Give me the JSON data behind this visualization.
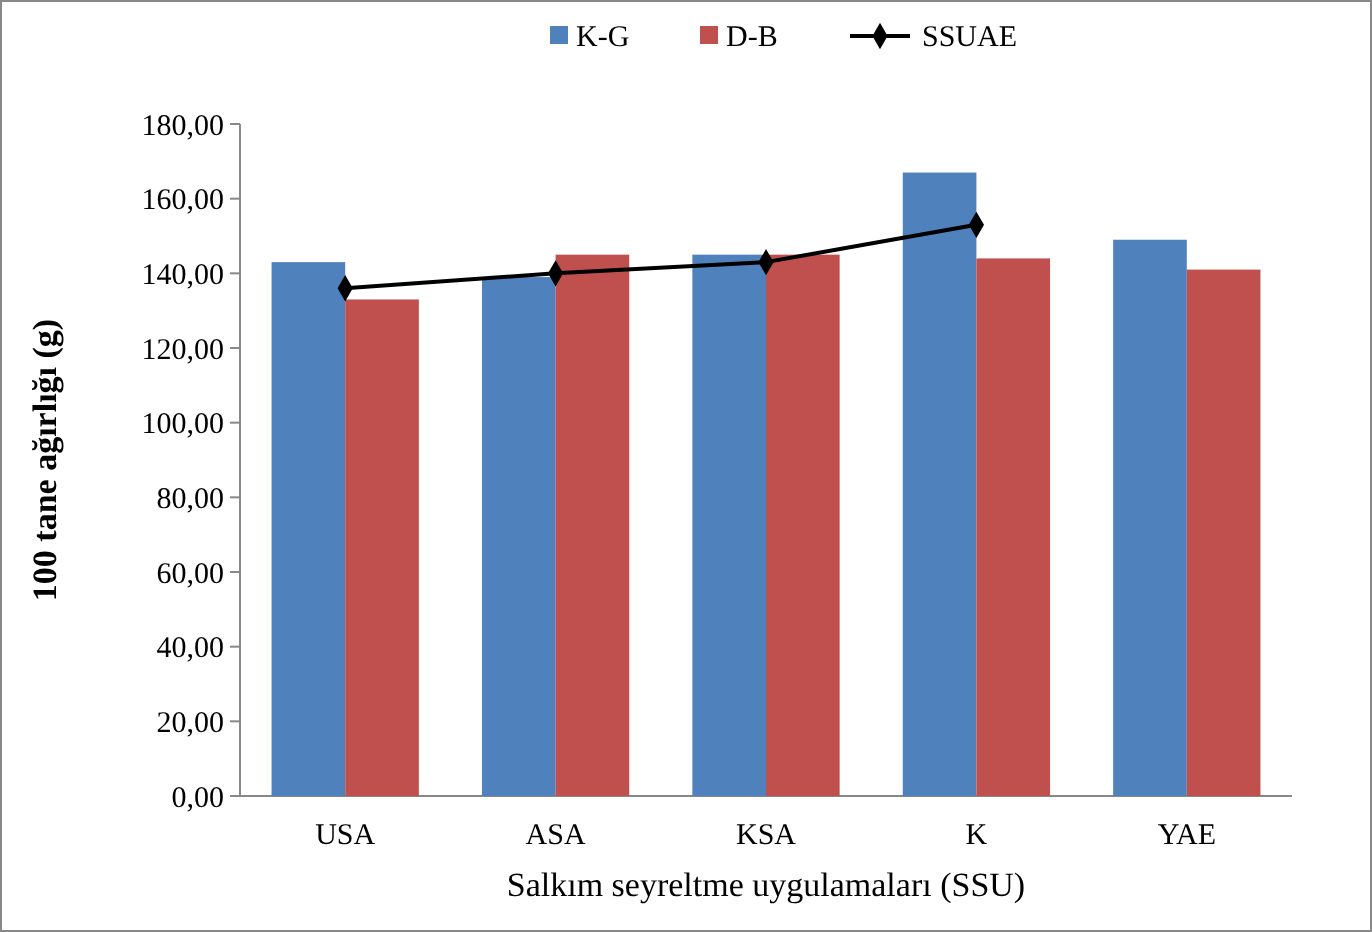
{
  "chart_data": {
    "type": "bar",
    "xlabel": "Salkım seyreltme uygulamaları (SSU)",
    "ylabel": "100 tane ağırlığı (g)",
    "categories": [
      "USA",
      "ASA",
      "KSA",
      "K",
      "YAE"
    ],
    "series": [
      {
        "name": "K-G",
        "color": "#4f81bd",
        "values": [
          143,
          139,
          145,
          167,
          149
        ]
      },
      {
        "name": "D-B",
        "color": "#c0504d",
        "values": [
          133,
          145,
          145,
          144,
          141
        ]
      },
      {
        "name": "SSUAE",
        "type": "line",
        "color": "#000000",
        "values": [
          136,
          140,
          143,
          153,
          null
        ],
        "marker": "diamond"
      }
    ],
    "ylim": [
      0,
      180
    ],
    "yticks": [
      {
        "value": 0,
        "label": "0,00"
      },
      {
        "value": 20,
        "label": "20,00"
      },
      {
        "value": 40,
        "label": "40,00"
      },
      {
        "value": 60,
        "label": "60,00"
      },
      {
        "value": 80,
        "label": "80,00"
      },
      {
        "value": 100,
        "label": "100,00"
      },
      {
        "value": 120,
        "label": "120,00"
      },
      {
        "value": 140,
        "label": "140,00"
      },
      {
        "value": 160,
        "label": "160,00"
      },
      {
        "value": 180,
        "label": "180,00"
      }
    ],
    "legend": "top"
  }
}
